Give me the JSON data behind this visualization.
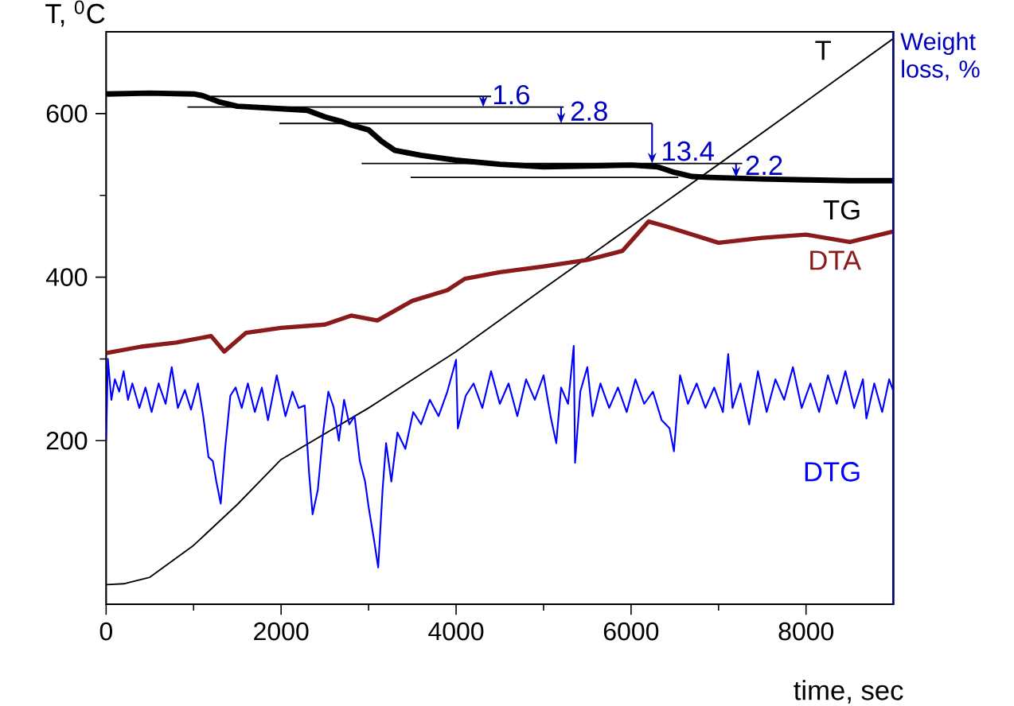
{
  "chart_data": {
    "type": "line",
    "xlabel": "time, sec",
    "ylabel": "T, $^{0}$C",
    "y2label": "Weight loss, %",
    "xlim": [
      0,
      9000
    ],
    "ylim": [
      0,
      700
    ],
    "xticks": [
      0,
      2000,
      4000,
      6000,
      8000
    ],
    "yticks": [
      200,
      400,
      600
    ],
    "marker": "none",
    "line_style": "solid",
    "series": [
      {
        "name": "T",
        "color": "#000000",
        "x": [
          0,
          200,
          500,
          1000,
          1500,
          2000,
          3000,
          4000,
          5000,
          6000,
          7000,
          8000,
          9000
        ],
        "values": [
          24,
          25,
          33,
          72,
          122,
          177,
          240,
          309,
          386,
          462,
          538,
          615,
          692
        ]
      },
      {
        "name": "TG",
        "color": "#000000",
        "x": [
          0,
          500,
          1000,
          1100,
          1300,
          1500,
          2000,
          2300,
          2500,
          2700,
          2800,
          3000,
          3150,
          3300,
          3600,
          4000,
          4500,
          5000,
          5500,
          6000,
          6300,
          6500,
          6700,
          6900,
          7500,
          8000,
          8500,
          9000
        ],
        "values": [
          624,
          625,
          624,
          622,
          614,
          609,
          606,
          604,
          596,
          590,
          586,
          580,
          566,
          555,
          549,
          543,
          538,
          535,
          536,
          537,
          535,
          528,
          523,
          522,
          520,
          519,
          518,
          518
        ]
      },
      {
        "name": "DTA",
        "color": "#8b1a1a",
        "x": [
          0,
          400,
          800,
          1200,
          1350,
          1600,
          2000,
          2500,
          2800,
          3100,
          3500,
          3900,
          4100,
          4500,
          5000,
          5500,
          5900,
          6200,
          6400,
          7000,
          7500,
          8000,
          8500,
          9000
        ],
        "values": [
          307,
          315,
          320,
          328,
          309,
          332,
          338,
          342,
          353,
          347,
          371,
          384,
          398,
          406,
          413,
          421,
          432,
          468,
          462,
          442,
          448,
          452,
          443,
          456
        ]
      },
      {
        "name": "DTG",
        "color": "#0000ff",
        "x": [
          0,
          20,
          60,
          100,
          150,
          200,
          250,
          300,
          380,
          450,
          520,
          600,
          680,
          750,
          820,
          900,
          970,
          1050,
          1110,
          1170,
          1220,
          1260,
          1310,
          1360,
          1420,
          1480,
          1550,
          1620,
          1700,
          1780,
          1850,
          1950,
          2050,
          2130,
          2200,
          2270,
          2320,
          2360,
          2420,
          2480,
          2540,
          2600,
          2660,
          2720,
          2780,
          2840,
          2900,
          2960,
          3000,
          3060,
          3110,
          3160,
          3200,
          3260,
          3330,
          3420,
          3510,
          3600,
          3700,
          3800,
          3900,
          4000,
          4020,
          4110,
          4200,
          4300,
          4400,
          4500,
          4600,
          4700,
          4800,
          4900,
          5000,
          5080,
          5145,
          5200,
          5280,
          5345,
          5360,
          5420,
          5500,
          5560,
          5650,
          5750,
          5850,
          5950,
          6050,
          6150,
          6250,
          6350,
          6440,
          6490,
          6560,
          6650,
          6750,
          6850,
          6950,
          7050,
          7110,
          7160,
          7250,
          7350,
          7450,
          7550,
          7650,
          7750,
          7850,
          7950,
          8050,
          8150,
          8250,
          8350,
          8450,
          8550,
          8650,
          8690,
          8780,
          8870,
          8950,
          9000
        ],
        "values": [
          200,
          300,
          250,
          275,
          260,
          285,
          250,
          270,
          240,
          265,
          235,
          270,
          245,
          290,
          240,
          262,
          238,
          270,
          230,
          180,
          175,
          150,
          123,
          190,
          255,
          265,
          240,
          270,
          235,
          265,
          225,
          280,
          230,
          260,
          240,
          243,
          160,
          110,
          140,
          210,
          260,
          241,
          200,
          250,
          220,
          230,
          175,
          150,
          119,
          80,
          45,
          140,
          197,
          150,
          210,
          190,
          235,
          220,
          250,
          230,
          260,
          299,
          215,
          255,
          270,
          240,
          285,
          245,
          270,
          230,
          275,
          250,
          280,
          230,
          197,
          265,
          245,
          316,
          173,
          260,
          290,
          230,
          270,
          240,
          265,
          235,
          275,
          245,
          260,
          225,
          215,
          187,
          280,
          245,
          270,
          240,
          265,
          235,
          306,
          240,
          270,
          220,
          285,
          235,
          275,
          250,
          290,
          240,
          270,
          235,
          280,
          245,
          285,
          240,
          275,
          227,
          270,
          235,
          275,
          260
        ]
      },
      {
        "color": "#000000",
        "x": [
          1200,
          4400
        ],
        "values": [
          621,
          621
        ]
      },
      {
        "color": "#000000",
        "x": [
          930,
          5230
        ],
        "values": [
          608,
          608
        ]
      },
      {
        "color": "#000000",
        "x": [
          1980,
          6240
        ],
        "values": [
          588,
          588
        ]
      },
      {
        "color": "#000000",
        "x": [
          2920,
          7270
        ],
        "values": [
          539,
          539
        ]
      },
      {
        "color": "#000000",
        "x": [
          3480,
          6540
        ],
        "values": [
          522,
          522
        ]
      }
    ],
    "annotations": [
      {
        "text": "1.6",
        "x": 4310,
        "y": 608
      },
      {
        "text": "2.8",
        "x": 5200,
        "y": 588
      },
      {
        "text": "13.4",
        "x": 6240,
        "y": 539
      },
      {
        "text": "2.2",
        "x": 7200,
        "y": 522
      }
    ]
  }
}
